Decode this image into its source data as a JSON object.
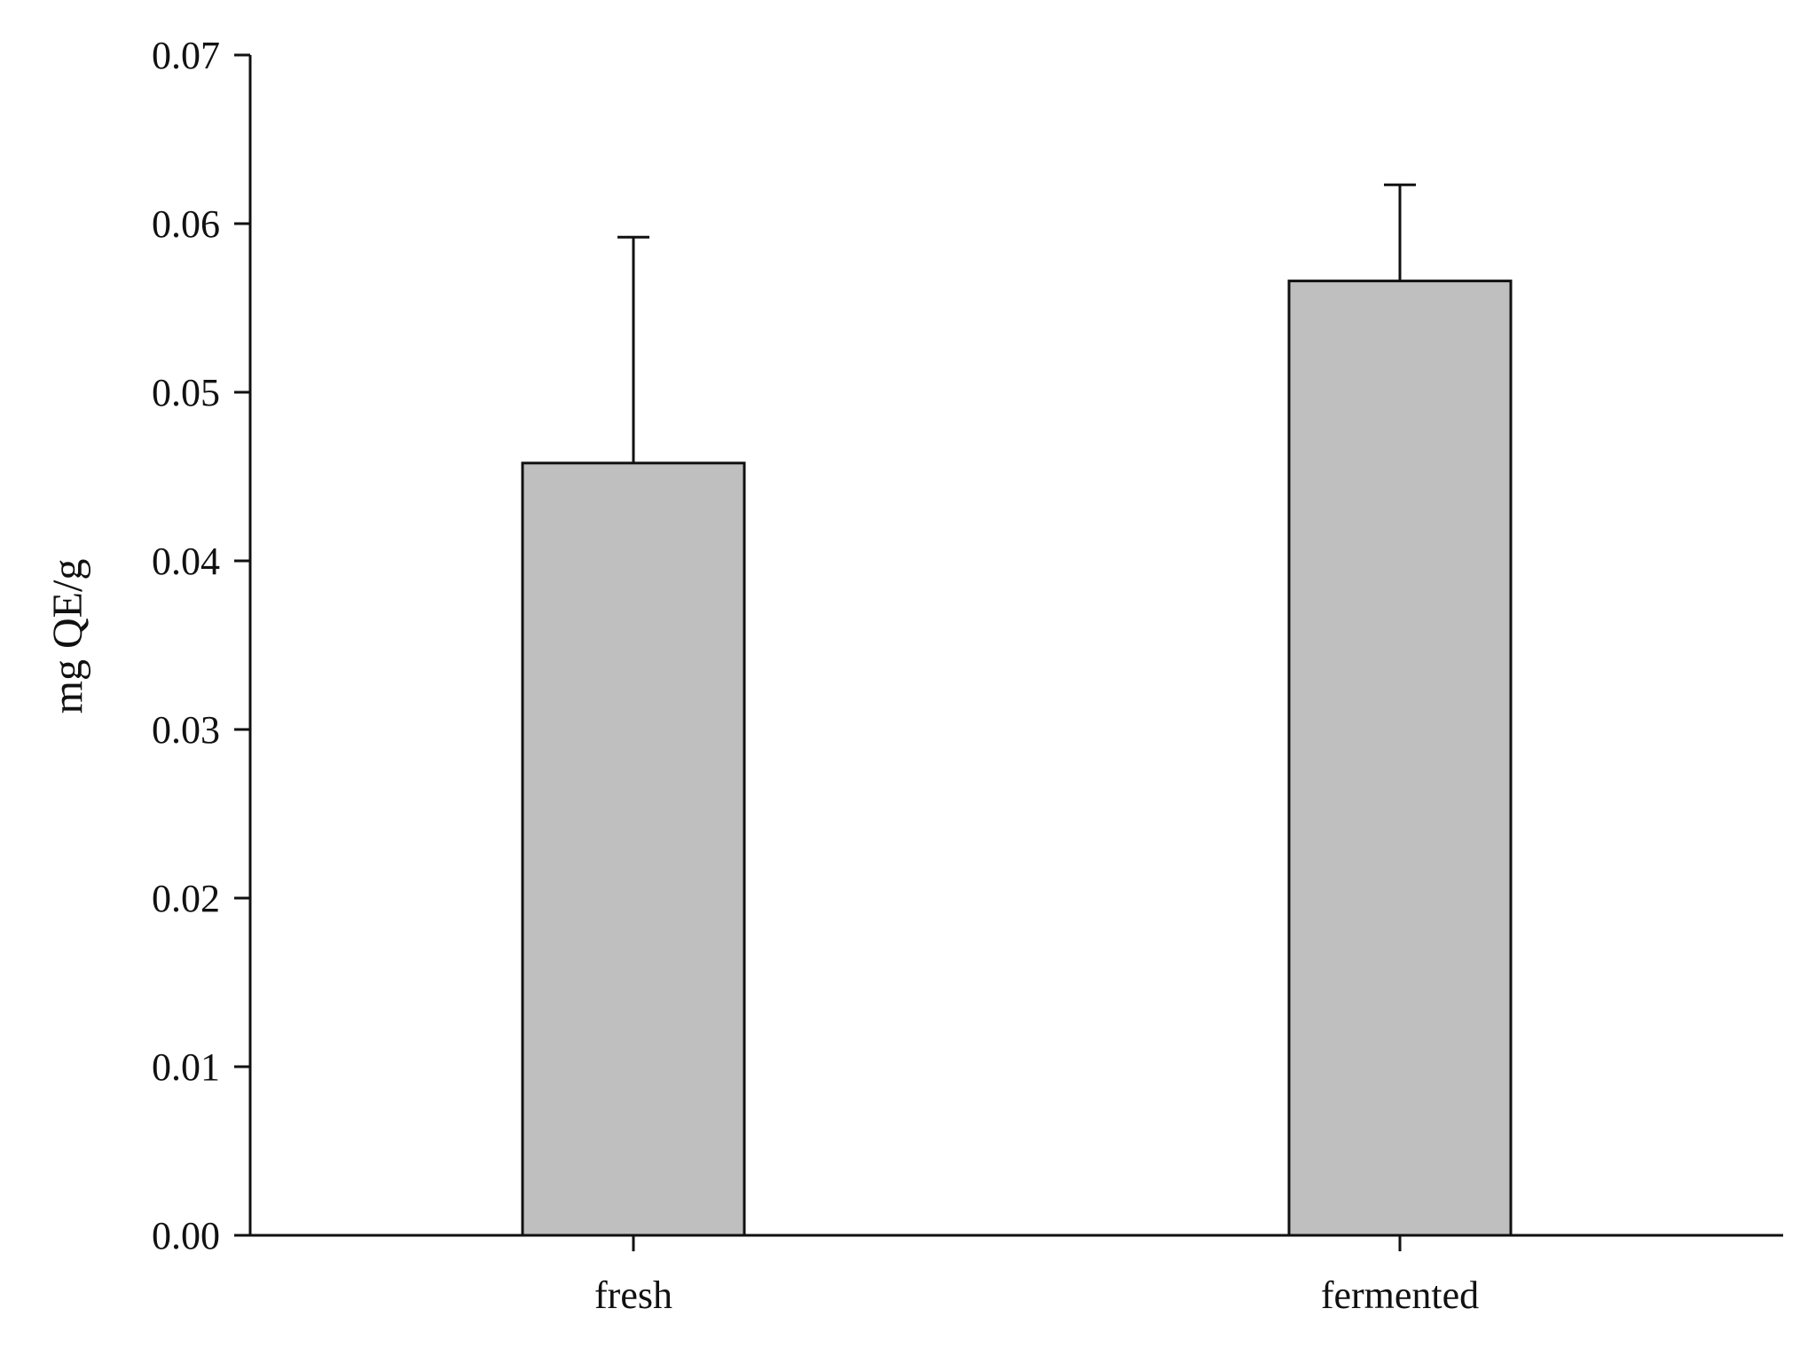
{
  "chart_data": {
    "type": "bar",
    "title": "",
    "xlabel": "",
    "ylabel": "mg QE/g",
    "categories": [
      "fresh",
      "fermented"
    ],
    "values": [
      0.0458,
      0.0566
    ],
    "error_upper": [
      0.0592,
      0.0623
    ],
    "ylim": [
      0,
      0.07
    ],
    "yticks": [
      "0.00",
      "0.01",
      "0.02",
      "0.03",
      "0.04",
      "0.05",
      "0.06",
      "0.07"
    ],
    "grid": false,
    "legend": "none",
    "bar_color": "#bfbfbf"
  }
}
